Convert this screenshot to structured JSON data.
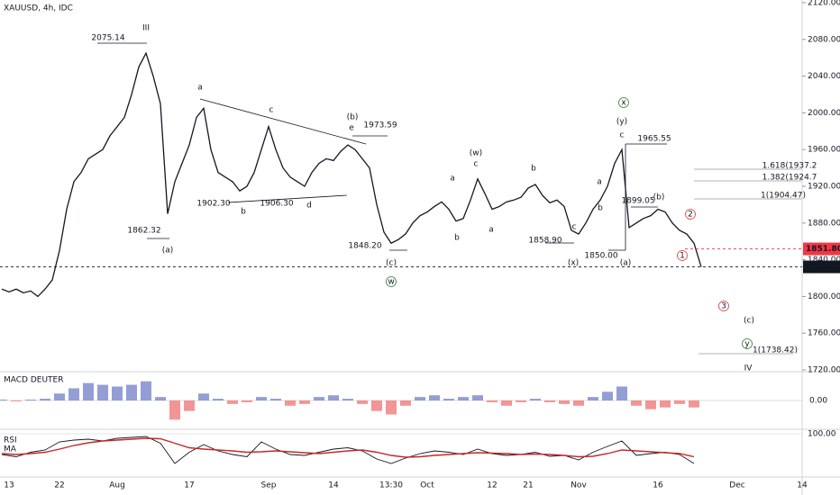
{
  "chart_data": [
    {
      "type": "line",
      "title": "XAUUSD, 4h, IDC",
      "color": "#131722",
      "categories": [
        null,
        "13",
        null,
        null,
        null,
        null,
        null,
        null,
        "22",
        null,
        null,
        null,
        null,
        null,
        null,
        null,
        "Aug",
        null,
        null,
        null,
        null,
        null,
        null,
        null,
        null,
        null,
        "17",
        null,
        null,
        null,
        null,
        null,
        null,
        null,
        null,
        null,
        null,
        "Sep",
        null,
        null,
        null,
        null,
        null,
        null,
        null,
        null,
        "14",
        null,
        null,
        null,
        null,
        null,
        null,
        null,
        "13:30",
        null,
        null,
        null,
        null,
        "Oct",
        null,
        null,
        null,
        null,
        null,
        null,
        null,
        null,
        "12",
        null,
        null,
        null,
        null,
        "21",
        null,
        null,
        null,
        null,
        null,
        null,
        "Nov",
        null,
        null,
        null,
        null,
        null,
        null,
        null,
        null,
        null,
        null,
        "16",
        null,
        null,
        null,
        null,
        null,
        null,
        null,
        null,
        null,
        null,
        "Dec",
        null,
        null,
        null,
        null,
        null,
        null,
        null,
        null,
        "14"
      ],
      "values": [
        1808,
        1805,
        1808,
        1804,
        1806,
        1800,
        1808,
        1818,
        1850,
        1895,
        1925,
        1935,
        1950,
        1955,
        1960,
        1975,
        1985,
        1995,
        2020,
        2050,
        2065,
        2040,
        2010,
        1890,
        1925,
        1945,
        1965,
        1995,
        2005,
        1960,
        1935,
        1930,
        1925,
        1915,
        1920,
        1935,
        1960,
        1985,
        1960,
        1940,
        1930,
        1925,
        1920,
        1935,
        1945,
        1950,
        1948,
        1958,
        1965,
        1960,
        1950,
        1940,
        1900,
        1870,
        1858,
        1862,
        1868,
        1880,
        1888,
        1892,
        1898,
        1903,
        1895,
        1882,
        1885,
        1905,
        1928,
        1912,
        1895,
        1898,
        1903,
        1905,
        1908,
        1918,
        1922,
        1910,
        1902,
        1905,
        1898,
        1872,
        1868,
        1880,
        1895,
        1905,
        1920,
        1945,
        1960,
        1875,
        1880,
        1885,
        1888,
        1895,
        1892,
        1880,
        1872,
        1868,
        1858,
        1832.21,
        null,
        null,
        null,
        null,
        null,
        null,
        null,
        null,
        null,
        null,
        null,
        null,
        null,
        null
      ],
      "ylim": [
        1720,
        2120
      ],
      "yticks": [
        {
          "value": 1720,
          "label": "1720.00"
        },
        {
          "value": 1760,
          "label": "1760.00"
        },
        {
          "value": 1800,
          "label": "1800.00"
        },
        {
          "value": 1840,
          "label": "1840.00"
        },
        {
          "value": 1880,
          "label": "1880.00"
        },
        {
          "value": 1920,
          "label": "1920.00"
        },
        {
          "value": 1960,
          "label": "1960.00"
        },
        {
          "value": 2000,
          "label": "2000.00"
        },
        {
          "value": 2040,
          "label": "2040.00"
        },
        {
          "value": 2080,
          "label": "2080.00"
        },
        {
          "value": 2120,
          "label": "2120.00"
        }
      ],
      "price_lines": [
        {
          "value": 1851.8,
          "label": "1851.80",
          "color": "#f23645"
        },
        {
          "value": 1832.21,
          "color": "#131722"
        }
      ],
      "annotations": [
        {
          "text": "III",
          "color": "#e53935"
        },
        {
          "text": "2075.14",
          "color": "#131722"
        },
        {
          "text": "1862.32",
          "color": "#131722"
        },
        {
          "text": "(a)",
          "color": "#3949ab"
        },
        {
          "text": "a",
          "color": "#8d6e2b"
        },
        {
          "text": "1902.30",
          "color": "#131722"
        },
        {
          "text": "b",
          "color": "#8d6e2b"
        },
        {
          "text": "c",
          "color": "#8d6e2b"
        },
        {
          "text": "1906.30",
          "color": "#131722"
        },
        {
          "text": "d",
          "color": "#8d6e2b"
        },
        {
          "text": "(b)",
          "color": "#3949ab"
        },
        {
          "text": "e",
          "color": "#8d6e2b"
        },
        {
          "text": "1973.59",
          "color": "#131722"
        },
        {
          "text": "1848.20",
          "color": "#131722"
        },
        {
          "text": "(c)",
          "color": "#3949ab"
        },
        {
          "text": "w",
          "color": "#2e7d32",
          "circled": true
        },
        {
          "text": "(w)",
          "color": "#e53935"
        },
        {
          "text": "c",
          "color": "#8d6e2b"
        },
        {
          "text": "a",
          "color": "#8d6e2b"
        },
        {
          "text": "b",
          "color": "#8d6e2b"
        },
        {
          "text": "a",
          "color": "#8d6e2b"
        },
        {
          "text": "b",
          "color": "#8d6e2b"
        },
        {
          "text": "c",
          "color": "#8d6e2b"
        },
        {
          "text": "a",
          "color": "#8d6e2b"
        },
        {
          "text": "b",
          "color": "#8d6e2b"
        },
        {
          "text": "1858.90",
          "color": "#131722"
        },
        {
          "text": "(x)",
          "color": "#e53935"
        },
        {
          "text": "1850.00",
          "color": "#131722"
        },
        {
          "text": "x",
          "color": "#2e7d32",
          "circled": true
        },
        {
          "text": "(y)",
          "color": "#e53935"
        },
        {
          "text": "c",
          "color": "#131722"
        },
        {
          "text": "1965.55",
          "color": "#131722"
        },
        {
          "text": "(a)",
          "color": "#3949ab"
        },
        {
          "text": "1899.05",
          "color": "#131722"
        },
        {
          "text": "(b)",
          "color": "#3949ab"
        },
        {
          "text": "2",
          "color": "#e53935",
          "circled": true
        },
        {
          "text": "1",
          "color": "#e53935",
          "circled": true
        },
        {
          "text": "3",
          "color": "#e53935",
          "circled": true
        },
        {
          "text": "(c)",
          "color": "#3949ab"
        },
        {
          "text": "y",
          "color": "#2e7d32",
          "circled": true
        },
        {
          "text": "IV",
          "color": "#e53935"
        },
        {
          "text": "1.618(1937.2",
          "color": "#131722"
        },
        {
          "text": "1.382(1924.7",
          "color": "#131722"
        },
        {
          "text": "1(1904.47)",
          "color": "#131722"
        },
        {
          "text": "1(1738.42)",
          "color": "#131722"
        }
      ]
    },
    {
      "type": "bar",
      "title": "MACD DEUTER",
      "positive_color": "#7986cb",
      "negative_color": "#ef7b7b",
      "values": [
        0.5,
        -0.5,
        0.5,
        1,
        4,
        7,
        10,
        9,
        8,
        9,
        11,
        2,
        -11,
        -6,
        4,
        1,
        -2,
        -1,
        2,
        1,
        -3,
        -2,
        2,
        3,
        1,
        -2,
        -6,
        -8,
        -3,
        2,
        3,
        1,
        2,
        3,
        -1,
        -3,
        -1,
        1,
        -1,
        -2,
        -3,
        2,
        5,
        8,
        -3,
        -5,
        -4,
        -2,
        -4
      ],
      "ylim": [
        -16,
        16
      ],
      "yticks": [
        {
          "value": 0,
          "label": "0.00"
        }
      ]
    },
    {
      "type": "line",
      "title": "RSI",
      "ylim": [
        0,
        100
      ],
      "yticks": [
        {
          "value": 100,
          "label": "100.00"
        }
      ],
      "series": [
        {
          "name": "RSI",
          "color": "#131722",
          "values": [
            50,
            45,
            55,
            60,
            78,
            82,
            84,
            80,
            86,
            88,
            90,
            75,
            30,
            55,
            72,
            58,
            50,
            45,
            78,
            62,
            50,
            48,
            55,
            62,
            65,
            58,
            40,
            30,
            42,
            52,
            58,
            55,
            50,
            62,
            52,
            48,
            50,
            55,
            46,
            48,
            38,
            55,
            68,
            80,
            48,
            52,
            55,
            50,
            30
          ]
        },
        {
          "name": "MA",
          "color": "#c62828",
          "values": [
            52,
            50,
            52,
            55,
            62,
            70,
            76,
            80,
            82,
            84,
            86,
            85,
            75,
            65,
            62,
            60,
            58,
            55,
            56,
            58,
            56,
            54,
            52,
            55,
            58,
            60,
            55,
            48,
            44,
            45,
            48,
            50,
            52,
            54,
            53,
            52,
            50,
            51,
            50,
            48,
            45,
            46,
            52,
            60,
            58,
            56,
            54,
            52,
            45
          ]
        }
      ]
    }
  ]
}
